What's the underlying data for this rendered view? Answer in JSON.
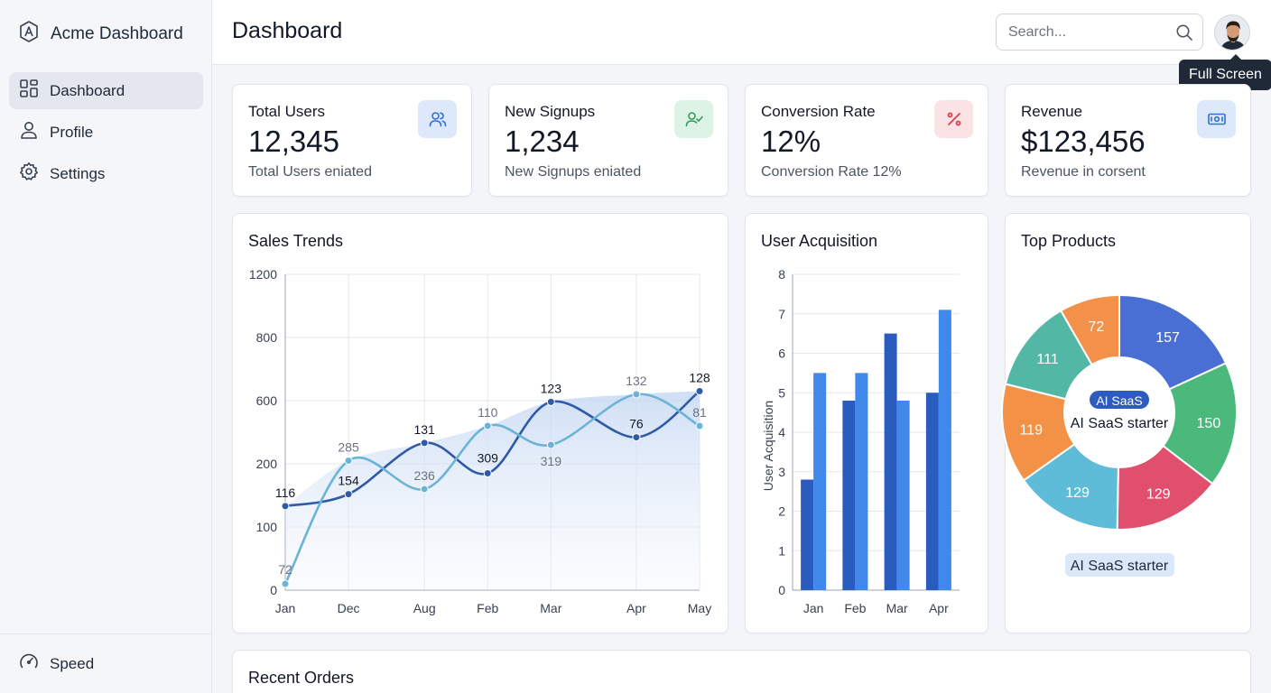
{
  "app": {
    "title": "Acme Dashboard"
  },
  "sidebar": {
    "items": [
      {
        "label": "Dashboard",
        "icon": "grid-icon",
        "active": true
      },
      {
        "label": "Profile",
        "icon": "user-icon",
        "active": false
      },
      {
        "label": "Settings",
        "icon": "gear-icon",
        "active": false
      }
    ],
    "footer": {
      "label": "Speed",
      "icon": "speedometer-icon"
    }
  },
  "header": {
    "title": "Dashboard",
    "search_placeholder": "Search...",
    "tooltip": "Full Screen"
  },
  "stats": [
    {
      "title": "Total Users",
      "value": "12,345",
      "sub": "Total Users eniated",
      "icon": "users-icon",
      "icon_bg": "#dbeafe",
      "icon_color": "#2563eb"
    },
    {
      "title": "New Signups",
      "value": "1,234",
      "sub": "New Signups eniated",
      "icon": "user-check-icon",
      "icon_bg": "#dcfce7",
      "icon_color": "#16a34a"
    },
    {
      "title": "Conversion Rate",
      "value": "12%",
      "sub": "Conversion Rate 12%",
      "icon": "percent-icon",
      "icon_bg": "#fee2e2",
      "icon_color": "#dc2626"
    },
    {
      "title": "Revenue",
      "value": "$123,456",
      "sub": "Revenue in corsent",
      "icon": "banknote-icon",
      "icon_bg": "#dbeafe",
      "icon_color": "#2563eb"
    }
  ],
  "sales": {
    "title": "Sales Trends",
    "chart_data": {
      "type": "line",
      "categories": [
        "Jan",
        "Dec",
        "Aug",
        "Feb",
        "Mar",
        "Apr",
        "May"
      ],
      "x_positions": [
        0,
        1,
        2.2,
        3.2,
        4.2,
        5.55,
        6.55
      ],
      "y_ticks": [
        "0",
        "100",
        "200",
        "600",
        "800",
        "1200"
      ],
      "ylim": [
        0,
        5
      ],
      "series": [
        {
          "color": "#2f5aa8",
          "values": [
            1.33,
            1.52,
            2.33,
            1.85,
            2.98,
            2.42,
            3.15
          ],
          "labels": [
            "116",
            "154",
            "131",
            "309",
            "123",
            "76",
            "128"
          ]
        },
        {
          "color": "#6cb4d6",
          "values": [
            0.1,
            2.05,
            1.6,
            2.6,
            2.3,
            3.1,
            2.6
          ],
          "labels": [
            "72",
            "285",
            "236",
            "110",
            "319",
            "132",
            "81"
          ]
        }
      ]
    }
  },
  "acquisition": {
    "title": "User Acquisition",
    "chart_data": {
      "type": "bar",
      "categories": [
        "Jan",
        "Feb",
        "Mar",
        "Apr"
      ],
      "ylabel": "User Acquisition",
      "ylim": [
        0,
        8
      ],
      "y_ticks": [
        0,
        1,
        2,
        3,
        4,
        5,
        6,
        7,
        8
      ],
      "series": [
        {
          "color": "#2a5cbf",
          "values": [
            2.8,
            4.8,
            6.5,
            5.0
          ]
        },
        {
          "color": "#4089ea",
          "values": [
            5.5,
            5.5,
            4.8,
            7.1
          ]
        }
      ]
    }
  },
  "products": {
    "title": "Top Products",
    "center_pill": "AI SaaS",
    "center_text": "AI SaaS starter",
    "legend": "AI SaaS starter",
    "chart_data": {
      "type": "pie",
      "values": [
        157,
        150,
        129,
        129,
        119,
        111,
        72
      ],
      "colors": [
        "#4a6fd4",
        "#4cb97c",
        "#e0506e",
        "#5fbcd9",
        "#f39147",
        "#52b7a5",
        "#f3914a"
      ]
    }
  },
  "orders": {
    "title": "Recent Orders"
  }
}
